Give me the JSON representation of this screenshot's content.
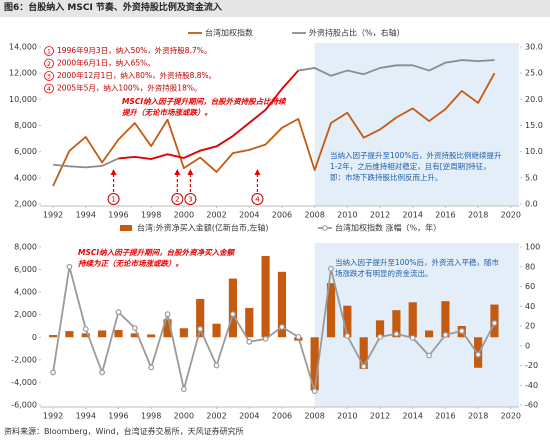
{
  "title": "图6：台股纳入 MSCI 节奏、外资持股比例及资金流入",
  "source": "资料来源：Bloomberg，Wind，台湾证券交易所，天风证券研究所",
  "chart_data": [
    {
      "type": "line",
      "x": [
        1992,
        1993,
        1994,
        1995,
        1996,
        1997,
        1998,
        1999,
        2000,
        2001,
        2002,
        2003,
        2004,
        2005,
        2006,
        2007,
        2008,
        2009,
        2010,
        2011,
        2012,
        2013,
        2014,
        2015,
        2016,
        2017,
        2018,
        2019
      ],
      "xlim": [
        1991.2,
        2020.5
      ],
      "xticks": [
        1992,
        1994,
        1996,
        1998,
        2000,
        2002,
        2004,
        2006,
        2008,
        2010,
        2012,
        2014,
        2016,
        2018,
        2020
      ],
      "ylim": [
        2000,
        14000
      ],
      "yticks": [
        {
          "value": 2000,
          "label": "2,000"
        },
        {
          "value": 4000,
          "label": "4,000"
        },
        {
          "value": 6000,
          "label": "6,000"
        },
        {
          "value": 8000,
          "label": "8,000"
        },
        {
          "value": 10000,
          "label": "10,000"
        },
        {
          "value": 12000,
          "label": "12,000"
        },
        {
          "value": 14000,
          "label": "14,000"
        }
      ],
      "y2lim": [
        0,
        30
      ],
      "y2ticks": [
        {
          "value": 0,
          "label": "0.0"
        },
        {
          "value": 5,
          "label": "5.0"
        },
        {
          "value": 10,
          "label": "10.0"
        },
        {
          "value": 15,
          "label": "15.0"
        },
        {
          "value": 20,
          "label": "20.0"
        },
        {
          "value": 25,
          "label": "25.0"
        },
        {
          "value": 30,
          "label": "30.0"
        }
      ],
      "shade": {
        "from": 2008,
        "color": "#e3eef8"
      },
      "series": [
        {
          "name": "台湾加权指数",
          "kind": "line",
          "color": "#c55a11",
          "values": [
            3377,
            6070,
            7124,
            5173,
            6933,
            8187,
            6418,
            8448,
            4739,
            5551,
            4452,
            5890,
            6139,
            6548,
            7823,
            8506,
            4591,
            8188,
            8972,
            7072,
            7699,
            8611,
            9307,
            8338,
            9253,
            10643,
            9727,
            11997
          ]
        },
        {
          "name": "外资持股占比（%，右轴）",
          "kind": "line",
          "axis": "y2",
          "color": "#8c8c8c",
          "highlight": {
            "from": 1996,
            "to": 2007,
            "color": "#e60000"
          },
          "values": [
            7.5,
            7.2,
            7.0,
            7.3,
            8.7,
            9.0,
            8.6,
            9.5,
            8.8,
            10.2,
            11.0,
            13.0,
            15.5,
            18.0,
            22.0,
            25.5,
            26.0,
            24.5,
            25.5,
            24.8,
            26.0,
            26.5,
            26.5,
            25.5,
            27.0,
            27.5,
            27.3,
            27.5
          ]
        }
      ],
      "list": [
        {
          "num": "1",
          "text": "1996年9月3日，纳入50%，外资持股8.7%。"
        },
        {
          "num": "2",
          "text": "2000年6月1日，纳入65%。"
        },
        {
          "num": "3",
          "text": "2000年12月1日，纳入80%，外资持股8.8%。"
        },
        {
          "num": "4",
          "text": "2005年5月，纳入100%，外资持股18%。"
        }
      ],
      "markers": [
        {
          "x": 1995.7
        },
        {
          "x": 1999.6
        },
        {
          "x": 2000.4
        },
        {
          "x": 2004.5
        }
      ],
      "notes": [
        {
          "text": "MSCI纳入因子提升期间，台股外资持股占比持续提升（无论市场涨或跌）。",
          "color": "#e60000"
        },
        {
          "text": "当纳入因子提升至100%后，外资持股比例继续提升1-2年，之后维持相对稳定，且有[逆周期]特征，即：市场下跌持股比例反而上升。",
          "color": "#1f5fa8"
        }
      ]
    },
    {
      "type": "bar",
      "x": [
        1992,
        1993,
        1994,
        1995,
        1996,
        1997,
        1998,
        1999,
        2000,
        2001,
        2002,
        2003,
        2004,
        2005,
        2006,
        2007,
        2008,
        2009,
        2010,
        2011,
        2012,
        2013,
        2014,
        2015,
        2016,
        2017,
        2018,
        2019
      ],
      "xlim": [
        1991.2,
        2020.5
      ],
      "xticks": [
        1992,
        1994,
        1996,
        1998,
        2000,
        2002,
        2004,
        2006,
        2008,
        2010,
        2012,
        2014,
        2016,
        2018,
        2020
      ],
      "ylim": [
        -6000,
        8000
      ],
      "yticks": [
        {
          "value": -6000,
          "label": "-6,000"
        },
        {
          "value": -4000,
          "label": "-4,000"
        },
        {
          "value": -2000,
          "label": "-2,000"
        },
        0,
        {
          "value": 2000,
          "label": "2,000"
        },
        {
          "value": 4000,
          "label": "4,000"
        },
        {
          "value": 6000,
          "label": "6,000"
        },
        {
          "value": 8000,
          "label": "8,000"
        }
      ],
      "y2lim": [
        -60,
        100
      ],
      "y2ticks": [
        -60,
        -40,
        -20,
        0,
        20,
        40,
        60,
        80,
        100
      ],
      "shade": {
        "from": 2008,
        "color": "#e3eef8"
      },
      "series": [
        {
          "name": "台湾:外资净买入金额(亿新台币,左轴)",
          "kind": "bar",
          "color": "#c55a11",
          "values": [
            200,
            550,
            350,
            600,
            650,
            350,
            250,
            1600,
            800,
            3400,
            1200,
            5200,
            2600,
            7200,
            5800,
            -300,
            -4700,
            4800,
            2800,
            -2800,
            1500,
            2400,
            3100,
            600,
            3200,
            1000,
            -2700,
            2900
          ]
        },
        {
          "name": "台湾加权指数 涨幅（%，年）",
          "kind": "line",
          "axis": "y2",
          "color": "#9a9a9a",
          "markers": true,
          "values": [
            -27,
            80,
            17,
            -27,
            34,
            18,
            -22,
            32,
            -44,
            17,
            -20,
            32,
            4,
            7,
            19,
            9,
            -46,
            78,
            10,
            -21,
            9,
            12,
            8,
            -10,
            11,
            15,
            -9,
            23
          ]
        }
      ],
      "notes": [
        {
          "text": "MSCI纳入因子提升期间，台股外资净买入金额持续为正（无论市场涨或跌）。",
          "color": "#e60000"
        },
        {
          "text": "当纳入因子提升至100%后，外资流入平稳，随市场涨跌才有明显的资金流出。",
          "color": "#1f5fa8"
        }
      ]
    }
  ]
}
